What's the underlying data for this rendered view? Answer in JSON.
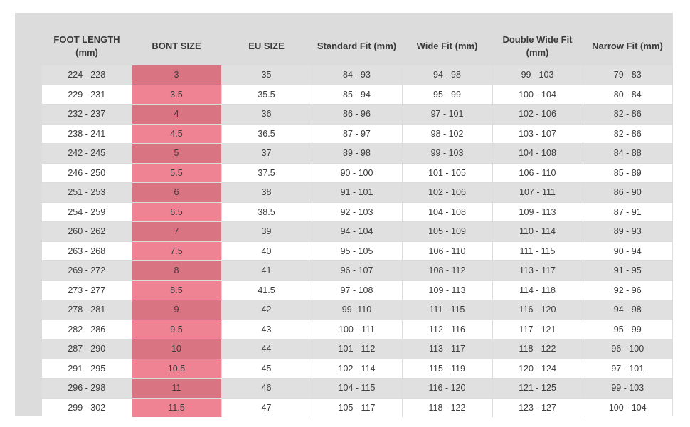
{
  "table": {
    "headers": [
      "FOOT LENGTH\n(mm)",
      "BONT SIZE",
      "EU SIZE",
      "Standard Fit (mm)",
      "Wide Fit (mm)",
      "Double Wide Fit\n(mm)",
      "Narrow Fit (mm)"
    ],
    "highlight_color": "#ef8393",
    "rows": [
      [
        "224 - 228",
        "3",
        "35",
        "84 - 93",
        "94 - 98",
        "99 - 103",
        "79 - 83"
      ],
      [
        "229 - 231",
        "3.5",
        "35.5",
        "85 - 94",
        "95 - 99",
        "100 - 104",
        "80 - 84"
      ],
      [
        "232 - 237",
        "4",
        "36",
        "86 - 96",
        "97 - 101",
        "102 - 106",
        "82 - 86"
      ],
      [
        "238 - 241",
        "4.5",
        "36.5",
        "87 - 97",
        "98 - 102",
        "103 - 107",
        "82 - 86"
      ],
      [
        "242 - 245",
        "5",
        "37",
        "89 - 98",
        "99 - 103",
        "104 - 108",
        "84 - 88"
      ],
      [
        "246 - 250",
        "5.5",
        "37.5",
        "90 - 100",
        "101 - 105",
        "106 - 110",
        "85 - 89"
      ],
      [
        "251 - 253",
        "6",
        "38",
        "91 - 101",
        "102 - 106",
        "107 - 111",
        "86 - 90"
      ],
      [
        "254 - 259",
        "6.5",
        "38.5",
        "92 - 103",
        "104 - 108",
        "109 - 113",
        "87 - 91"
      ],
      [
        "260 - 262",
        "7",
        "39",
        "94 - 104",
        "105 - 109",
        "110 - 114",
        "89 - 93"
      ],
      [
        "263 - 268",
        "7.5",
        "40",
        "95 - 105",
        "106 - 110",
        "111 - 115",
        "90 - 94"
      ],
      [
        "269 - 272",
        "8",
        "41",
        "96 - 107",
        "108 - 112",
        "113 - 117",
        "91 - 95"
      ],
      [
        "273 - 277",
        "8.5",
        "41.5",
        "97 - 108",
        "109 - 113",
        "114 - 118",
        "92 - 96"
      ],
      [
        "278 - 281",
        "9",
        "42",
        "99 -110",
        "111 - 115",
        "116 - 120",
        "94 - 98"
      ],
      [
        "282 - 286",
        "9.5",
        "43",
        "100 - 111",
        "112 - 116",
        "117 - 121",
        "95 - 99"
      ],
      [
        "287 - 290",
        "10",
        "44",
        "101 - 112",
        "113 - 117",
        "118 - 122",
        "96 - 100"
      ],
      [
        "291 - 295",
        "10.5",
        "45",
        "102 - 114",
        "115 - 119",
        "120 - 124",
        "97 - 101"
      ],
      [
        "296 - 298",
        "11",
        "46",
        "104 - 115",
        "116 - 120",
        "121 - 125",
        "99 - 103"
      ],
      [
        "299 - 302",
        "11.5",
        "47",
        "105 - 117",
        "118 - 122",
        "123 - 127",
        "100 - 104"
      ]
    ]
  }
}
